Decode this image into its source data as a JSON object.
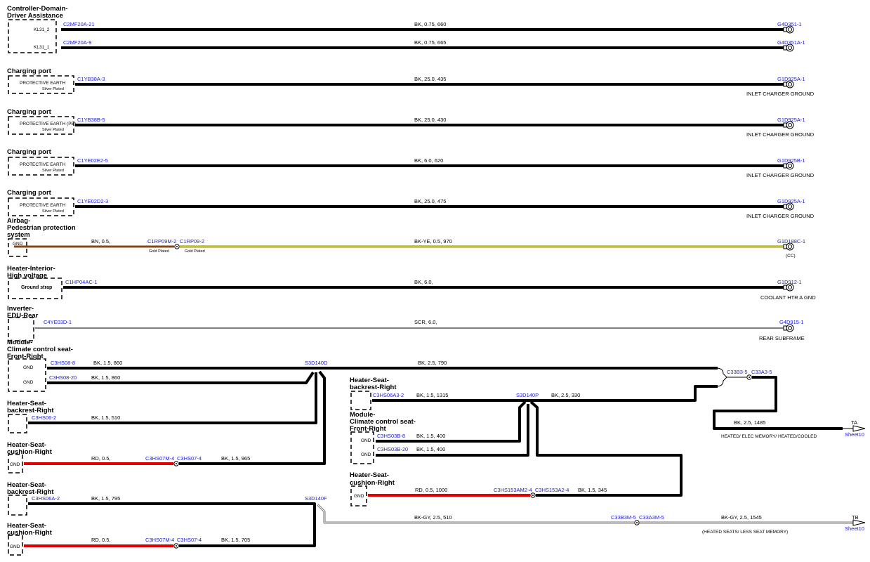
{
  "rows": [
    {
      "title": [
        "Controller-Domain-",
        "Driver Assistance"
      ],
      "pins": [
        "KL31_2",
        "KL31_1"
      ],
      "wires": [
        {
          "from": "C2MF20A-21",
          "label": "BK, 0.75, 660",
          "to": "G4D351-1"
        },
        {
          "from": "C2MF20A-9",
          "label": "BK, 0.75, 665",
          "to": "G4D351A-1"
        }
      ]
    },
    {
      "title": [
        "Charging port"
      ],
      "pins": [
        "PROTECTIVE EARTH",
        "Silver Plated"
      ],
      "wires": [
        {
          "from": "C1YB38A-3",
          "label": "BK, 25.0, 435",
          "to": "G1D925A-1"
        }
      ],
      "note": "INLET CHARGER GROUND"
    },
    {
      "title": [
        "Charging port"
      ],
      "pins": [
        "PROTECTIVE EARTH (PE)",
        "Silver Plated"
      ],
      "wires": [
        {
          "from": "C1YB38B-5",
          "label": "BK, 25.0, 430",
          "to": "G1D925A-1"
        }
      ],
      "note": "INLET CHARGER GROUND"
    },
    {
      "title": [
        "Charging port"
      ],
      "pins": [
        "PROTECTIVE EARTH",
        "Silver Plated"
      ],
      "wires": [
        {
          "from": "C1YE02E2-5",
          "label": "BK, 6.0, 620",
          "to": "G1D925B-1"
        }
      ],
      "note": "INLET CHARGER GROUND"
    },
    {
      "title": [
        "Charging port"
      ],
      "pins": [
        "PROTECTIVE EARTH",
        "Silver Plated"
      ],
      "wires": [
        {
          "from": "C1YE02D2-3",
          "label": "BK, 25.0, 475",
          "to": "G1D925A-1"
        }
      ],
      "note": "INLET CHARGER GROUND"
    },
    {
      "title": [
        "Airbag-",
        "Pedestrian protection",
        "system"
      ],
      "pins": [
        "GND"
      ],
      "wires": [
        {
          "label": "BN, 0.5,"
        },
        {
          "from": "C1RP09M-2",
          "plating": "Gold Plated"
        },
        {
          "from": "C1RP09-2",
          "plating": "Gold Plated",
          "label": "BK-YE, 0.5, 970",
          "to": "G1D188C-1"
        }
      ],
      "note": "(CC)"
    },
    {
      "title": [
        "Heater-Interior-",
        "High voltage"
      ],
      "pins": [
        "Ground strap"
      ],
      "wires": [
        {
          "from": "C1HP04AC-1",
          "label": "BK, 6.0,",
          "to": "G1D912-1"
        }
      ],
      "note": "COOLANT HTR A GND"
    },
    {
      "title": [
        "Inverter-",
        "EDU-Rear"
      ],
      "wires": [
        {
          "from": "C4YE03D-1",
          "label": "SCR, 6.0,",
          "to": "G4D915-1"
        }
      ],
      "note": "REAR SUBFRAME"
    }
  ],
  "seats": [
    {
      "title": [
        "Module-",
        "Climate control seat-",
        "Front-Right"
      ],
      "pins": [
        "GND",
        "GND"
      ],
      "wires": [
        {
          "from": "C3HS08-8",
          "label": "BK, 1.5, 860"
        },
        {
          "from": "C3HS08-20",
          "label": "BK, 1.5, 860"
        }
      ]
    },
    {
      "title": [
        "Heater-Seat-",
        "backrest-Right"
      ],
      "wires": [
        {
          "from": "C3HS06-2",
          "label": "BK, 1.5, 510"
        }
      ]
    },
    {
      "title": [
        "Heater-Seat-",
        "cushion-Right"
      ],
      "pins": [
        "GND"
      ],
      "wires": [
        {
          "label": "RD, 0.5,"
        },
        {
          "from": "C3HS07M-4"
        },
        {
          "from": "C3HS07-4",
          "label": "BK, 1.5, 965"
        }
      ]
    },
    {
      "title": [
        "Heater-Seat-",
        "backrest-Right"
      ],
      "wires": [
        {
          "from": "C3HS06A-2",
          "label": "BK, 1.5, 795"
        }
      ]
    },
    {
      "title": [
        "Heater-Seat-",
        "cushion-Right"
      ],
      "pins": [
        "GND"
      ],
      "wires": [
        {
          "label": "RD, 0.5,"
        },
        {
          "from": "C3HS07M-4"
        },
        {
          "from": "C3HS07-4",
          "label": "BK, 1.5, 705"
        }
      ]
    },
    {
      "title": [
        "Heater-Seat-",
        "backrest-Right"
      ],
      "wires": [
        {
          "from": "C3HS06A3-2",
          "label": "BK, 1.5, 1315"
        }
      ]
    },
    {
      "title": [
        "Module-",
        "Climate control seat-",
        "Front-Right"
      ],
      "pins": [
        "GND",
        "GND"
      ],
      "wires": [
        {
          "from": "C3HS03B-8",
          "label": "BK, 1.5, 400"
        },
        {
          "from": "C3HS03B-20",
          "label": "BK, 1.5, 400"
        }
      ]
    },
    {
      "title": [
        "Heater-Seat-",
        "cushion-Right"
      ],
      "pins": [
        "GND"
      ],
      "wires": [
        {
          "label": "RD, 0.5, 1000"
        },
        {
          "from": "C3HS153AM2-4"
        },
        {
          "from": "C3HS153A2-4",
          "label": "BK, 1.5, 345"
        }
      ]
    }
  ],
  "splices": [
    {
      "name": "S3D140D",
      "label": "BK, 2.5, 790"
    },
    {
      "name": "S3D140P",
      "label": "BK, 2.5, 330"
    },
    {
      "name": "S3D140F",
      "label": "BK-GY, 2.5, 510"
    }
  ],
  "outputs": [
    {
      "from": "C33B3-5",
      "to": "C33A3-5",
      "label": "BK, 2.5, 1485",
      "tag": "TA",
      "sheet": "Sheet10",
      "note": "HEATED/ ELEC MEMORY/ HEATED/COOLED"
    },
    {
      "from": "C33B3M-5",
      "to": "C33A3M-5",
      "label": "BK-GY, 2.5, 1545",
      "tag": "TB",
      "sheet": "Sheet10",
      "note": "(HEATED SEATS/ LESS SEAT MEMORY)"
    }
  ]
}
